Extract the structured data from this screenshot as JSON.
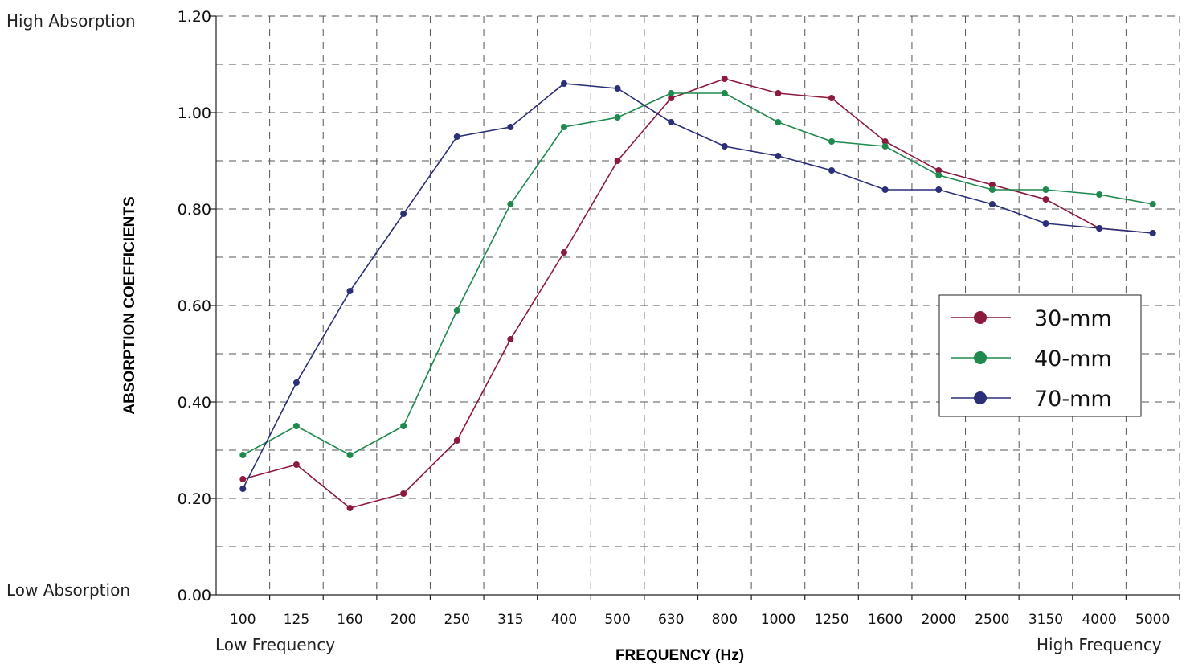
{
  "chart_data": {
    "type": "line",
    "xlabel": "FREQUENCY (Hz)",
    "ylabel": "ABSORPTION COEFFICIENTS",
    "categories": [
      "100",
      "125",
      "160",
      "200",
      "250",
      "315",
      "400",
      "500",
      "630",
      "800",
      "1000",
      "1250",
      "1600",
      "2000",
      "2500",
      "3150",
      "4000",
      "5000"
    ],
    "ylim": [
      0,
      1.2
    ],
    "yticks": [
      "0.00",
      "0.20",
      "0.40",
      "0.60",
      "0.80",
      "1.00",
      "1.20"
    ],
    "grid": true,
    "legend_position": "right",
    "series": [
      {
        "name": "30-mm",
        "color": "#8b1a3c",
        "values": [
          0.24,
          0.27,
          0.18,
          0.21,
          0.32,
          0.53,
          0.71,
          0.9,
          1.03,
          1.07,
          1.04,
          1.03,
          0.94,
          0.88,
          0.85,
          0.82,
          0.76,
          0.75
        ]
      },
      {
        "name": "40-mm",
        "color": "#1e8a4e",
        "values": [
          0.29,
          0.35,
          0.29,
          0.35,
          0.59,
          0.81,
          0.97,
          0.99,
          1.04,
          1.04,
          0.98,
          0.94,
          0.93,
          0.87,
          0.84,
          0.84,
          0.83,
          0.81
        ]
      },
      {
        "name": "70-mm",
        "color": "#2b2f78",
        "values": [
          0.22,
          0.44,
          0.63,
          0.79,
          0.95,
          0.97,
          1.06,
          1.05,
          0.98,
          0.93,
          0.91,
          0.88,
          0.84,
          0.84,
          0.81,
          0.77,
          0.76,
          0.75
        ]
      }
    ]
  },
  "labels": {
    "high_absorption": "High Absorption",
    "low_absorption": "Low Absorption",
    "low_frequency": "Low Frequency",
    "high_frequency": "High Frequency"
  }
}
